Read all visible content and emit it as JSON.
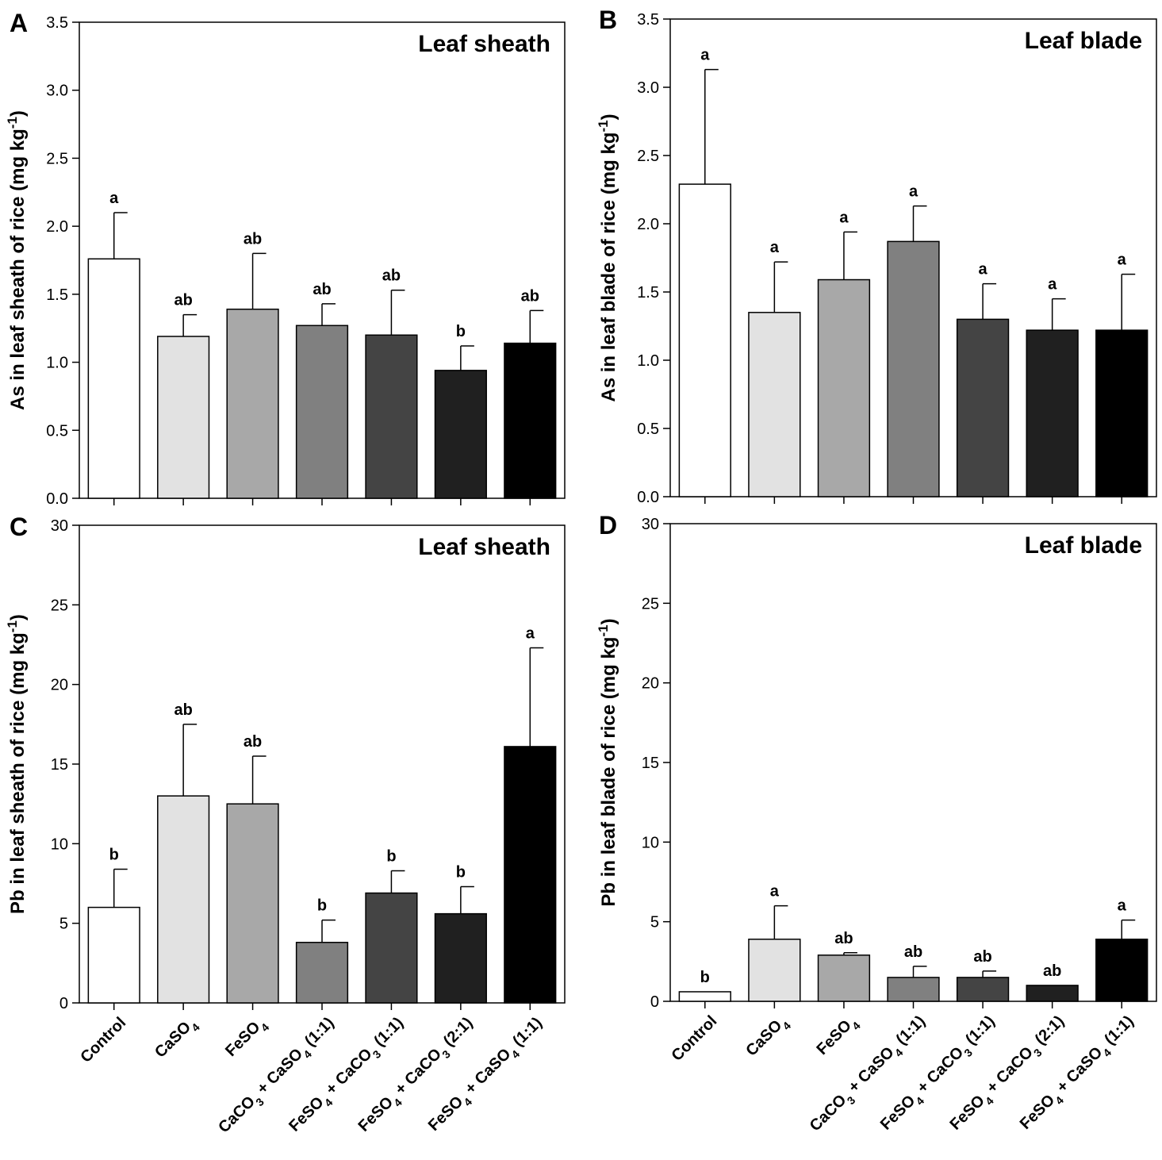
{
  "chart_data": [
    {
      "type": "bar",
      "panel": "A",
      "title": "Leaf sheath",
      "ylabel": "As in leaf sheath of rice (mg kg⁻¹)",
      "ylim": [
        0,
        3.5
      ],
      "yticks": [
        "0.0",
        "0.5",
        "1.0",
        "1.5",
        "2.0",
        "2.5",
        "3.0",
        "3.5"
      ],
      "yticks_values": [
        0,
        0.5,
        1.0,
        1.5,
        2.0,
        2.5,
        3.0,
        3.5
      ],
      "categories": [
        "Control",
        "CaSO₄",
        "FeSO₄",
        "CaCO₃ + CaSO₄ (1:1)",
        "FeSO₄ + CaCO₃ (1:1)",
        "FeSO₄ + CaCO₃ (2:1)",
        "FeSO₄ + CaSO₄ (1:1)"
      ],
      "values": [
        1.76,
        1.19,
        1.39,
        1.27,
        1.2,
        0.94,
        1.14
      ],
      "errors": [
        0.34,
        0.16,
        0.41,
        0.16,
        0.33,
        0.18,
        0.24
      ],
      "letters": [
        "a",
        "ab",
        "ab",
        "ab",
        "ab",
        "b",
        "ab"
      ]
    },
    {
      "type": "bar",
      "panel": "B",
      "title": "Leaf blade",
      "ylabel": "As in leaf blade of rice (mg kg⁻¹)",
      "ylim": [
        0,
        3.5
      ],
      "yticks": [
        "0.0",
        "0.5",
        "1.0",
        "1.5",
        "2.0",
        "2.5",
        "3.0",
        "3.5"
      ],
      "yticks_values": [
        0,
        0.5,
        1.0,
        1.5,
        2.0,
        2.5,
        3.0,
        3.5
      ],
      "categories": [
        "Control",
        "CaSO₄",
        "FeSO₄",
        "CaCO₃ + CaSO₄ (1:1)",
        "FeSO₄ + CaCO₃ (1:1)",
        "FeSO₄ + CaCO₃ (2:1)",
        "FeSO₄ + CaSO₄ (1:1)"
      ],
      "values": [
        2.29,
        1.35,
        1.59,
        1.87,
        1.3,
        1.22,
        1.22
      ],
      "errors": [
        0.84,
        0.37,
        0.35,
        0.26,
        0.26,
        0.23,
        0.41
      ],
      "letters": [
        "a",
        "a",
        "a",
        "a",
        "a",
        "a",
        "a"
      ]
    },
    {
      "type": "bar",
      "panel": "C",
      "title": "Leaf sheath",
      "ylabel": "Pb in leaf sheath of rice (mg kg⁻¹)",
      "ylim": [
        0,
        30
      ],
      "yticks": [
        "0",
        "5",
        "10",
        "15",
        "20",
        "25",
        "30"
      ],
      "yticks_values": [
        0,
        5,
        10,
        15,
        20,
        25,
        30
      ],
      "categories": [
        "Control",
        "CaSO₄",
        "FeSO₄",
        "CaCO₃ + CaSO₄ (1:1)",
        "FeSO₄ + CaCO₃ (1:1)",
        "FeSO₄ + CaCO₃ (2:1)",
        "FeSO₄ + CaSO₄ (1:1)"
      ],
      "values": [
        6.0,
        13.0,
        12.5,
        3.8,
        6.9,
        5.6,
        16.1
      ],
      "errors": [
        2.4,
        4.5,
        3.0,
        1.4,
        1.4,
        1.7,
        6.2
      ],
      "letters": [
        "b",
        "ab",
        "ab",
        "b",
        "b",
        "b",
        "a"
      ]
    },
    {
      "type": "bar",
      "panel": "D",
      "title": "Leaf blade",
      "ylabel": "Pb in leaf blade of rice (mg kg⁻¹)",
      "ylim": [
        0,
        30
      ],
      "yticks": [
        "0",
        "5",
        "10",
        "15",
        "20",
        "25",
        "30"
      ],
      "yticks_values": [
        0,
        5,
        10,
        15,
        20,
        25,
        30
      ],
      "categories": [
        "Control",
        "CaSO₄",
        "FeSO₄",
        "CaCO₃ + CaSO₄ (1:1)",
        "FeSO₄ + CaCO₃ (1:1)",
        "FeSO₄ + CaCO₃ (2:1)",
        "FeSO₄ + CaSO₄ (1:1)"
      ],
      "values": [
        0.6,
        3.9,
        2.9,
        1.5,
        1.5,
        1.0,
        3.9
      ],
      "errors": [
        0.0,
        2.1,
        0.15,
        0.7,
        0.4,
        0.0,
        1.2
      ],
      "letters": [
        "b",
        "a",
        "ab",
        "ab",
        "ab",
        "ab",
        "a"
      ]
    }
  ],
  "bar_colors": [
    "#ffffff",
    "#e2e2e2",
    "#a8a8a8",
    "#808080",
    "#444444",
    "#202020",
    "#000000"
  ]
}
